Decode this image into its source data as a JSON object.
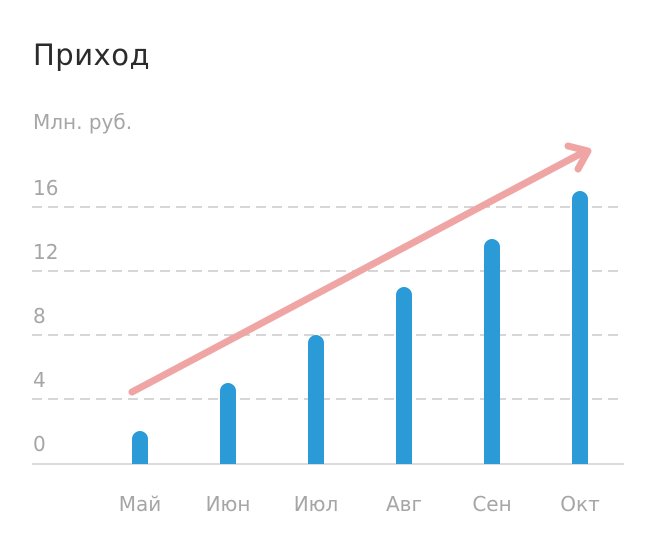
{
  "chart_data": {
    "type": "bar",
    "title": "Приход",
    "ylabel": "Млн. руб.",
    "categories": [
      "Май",
      "Июн",
      "Июл",
      "Авг",
      "Сен",
      "Окт"
    ],
    "values": [
      2,
      5,
      8,
      11,
      14,
      17
    ],
    "yticks": [
      0,
      4,
      8,
      12,
      16
    ],
    "ylim": [
      0,
      16
    ],
    "grid": true,
    "trend_arrow": true,
    "colors": {
      "bar": "#2b9bd8",
      "arrow": "#f0a5a5",
      "grid": "#c8c8c8",
      "axis": "#cfcfcf"
    }
  }
}
